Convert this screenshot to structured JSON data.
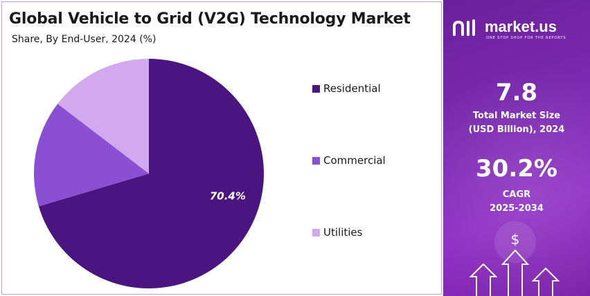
{
  "header": {
    "title": "Global Vehicle to Grid (V2G) Technology Market",
    "subtitle": "Share, By End-User, 2024 (%)"
  },
  "chart_data": {
    "type": "pie",
    "slices": [
      {
        "label": "Residential",
        "value": 70.4,
        "color": "#4a1580",
        "show_label": true,
        "display": "70.4%"
      },
      {
        "label": "Commercial",
        "value": 15.0,
        "color": "#8a4fd2",
        "show_label": false
      },
      {
        "label": "Utilities",
        "value": 14.6,
        "color": "#d2a9ee",
        "show_label": false
      }
    ],
    "legend": [
      "Residential",
      "Commercial",
      "Utilities"
    ],
    "legend_position": "right"
  },
  "brand": {
    "name": "market.us",
    "tagline": "ONE STOP SHOP FOR THE REPORTS"
  },
  "stats": {
    "market_size_value": "7.8",
    "market_size_label_1": "Total Market Size",
    "market_size_label_2": "(USD Billion), 2024",
    "cagr_value": "30.2%",
    "cagr_label_1": "CAGR",
    "cagr_label_2": "2025-2034"
  },
  "icons": {
    "dollar": "$"
  },
  "colors": {
    "panel_purple": "#7b2bb0",
    "residential": "#4a1580",
    "commercial": "#8a4fd2",
    "utilities": "#d2a9ee"
  }
}
